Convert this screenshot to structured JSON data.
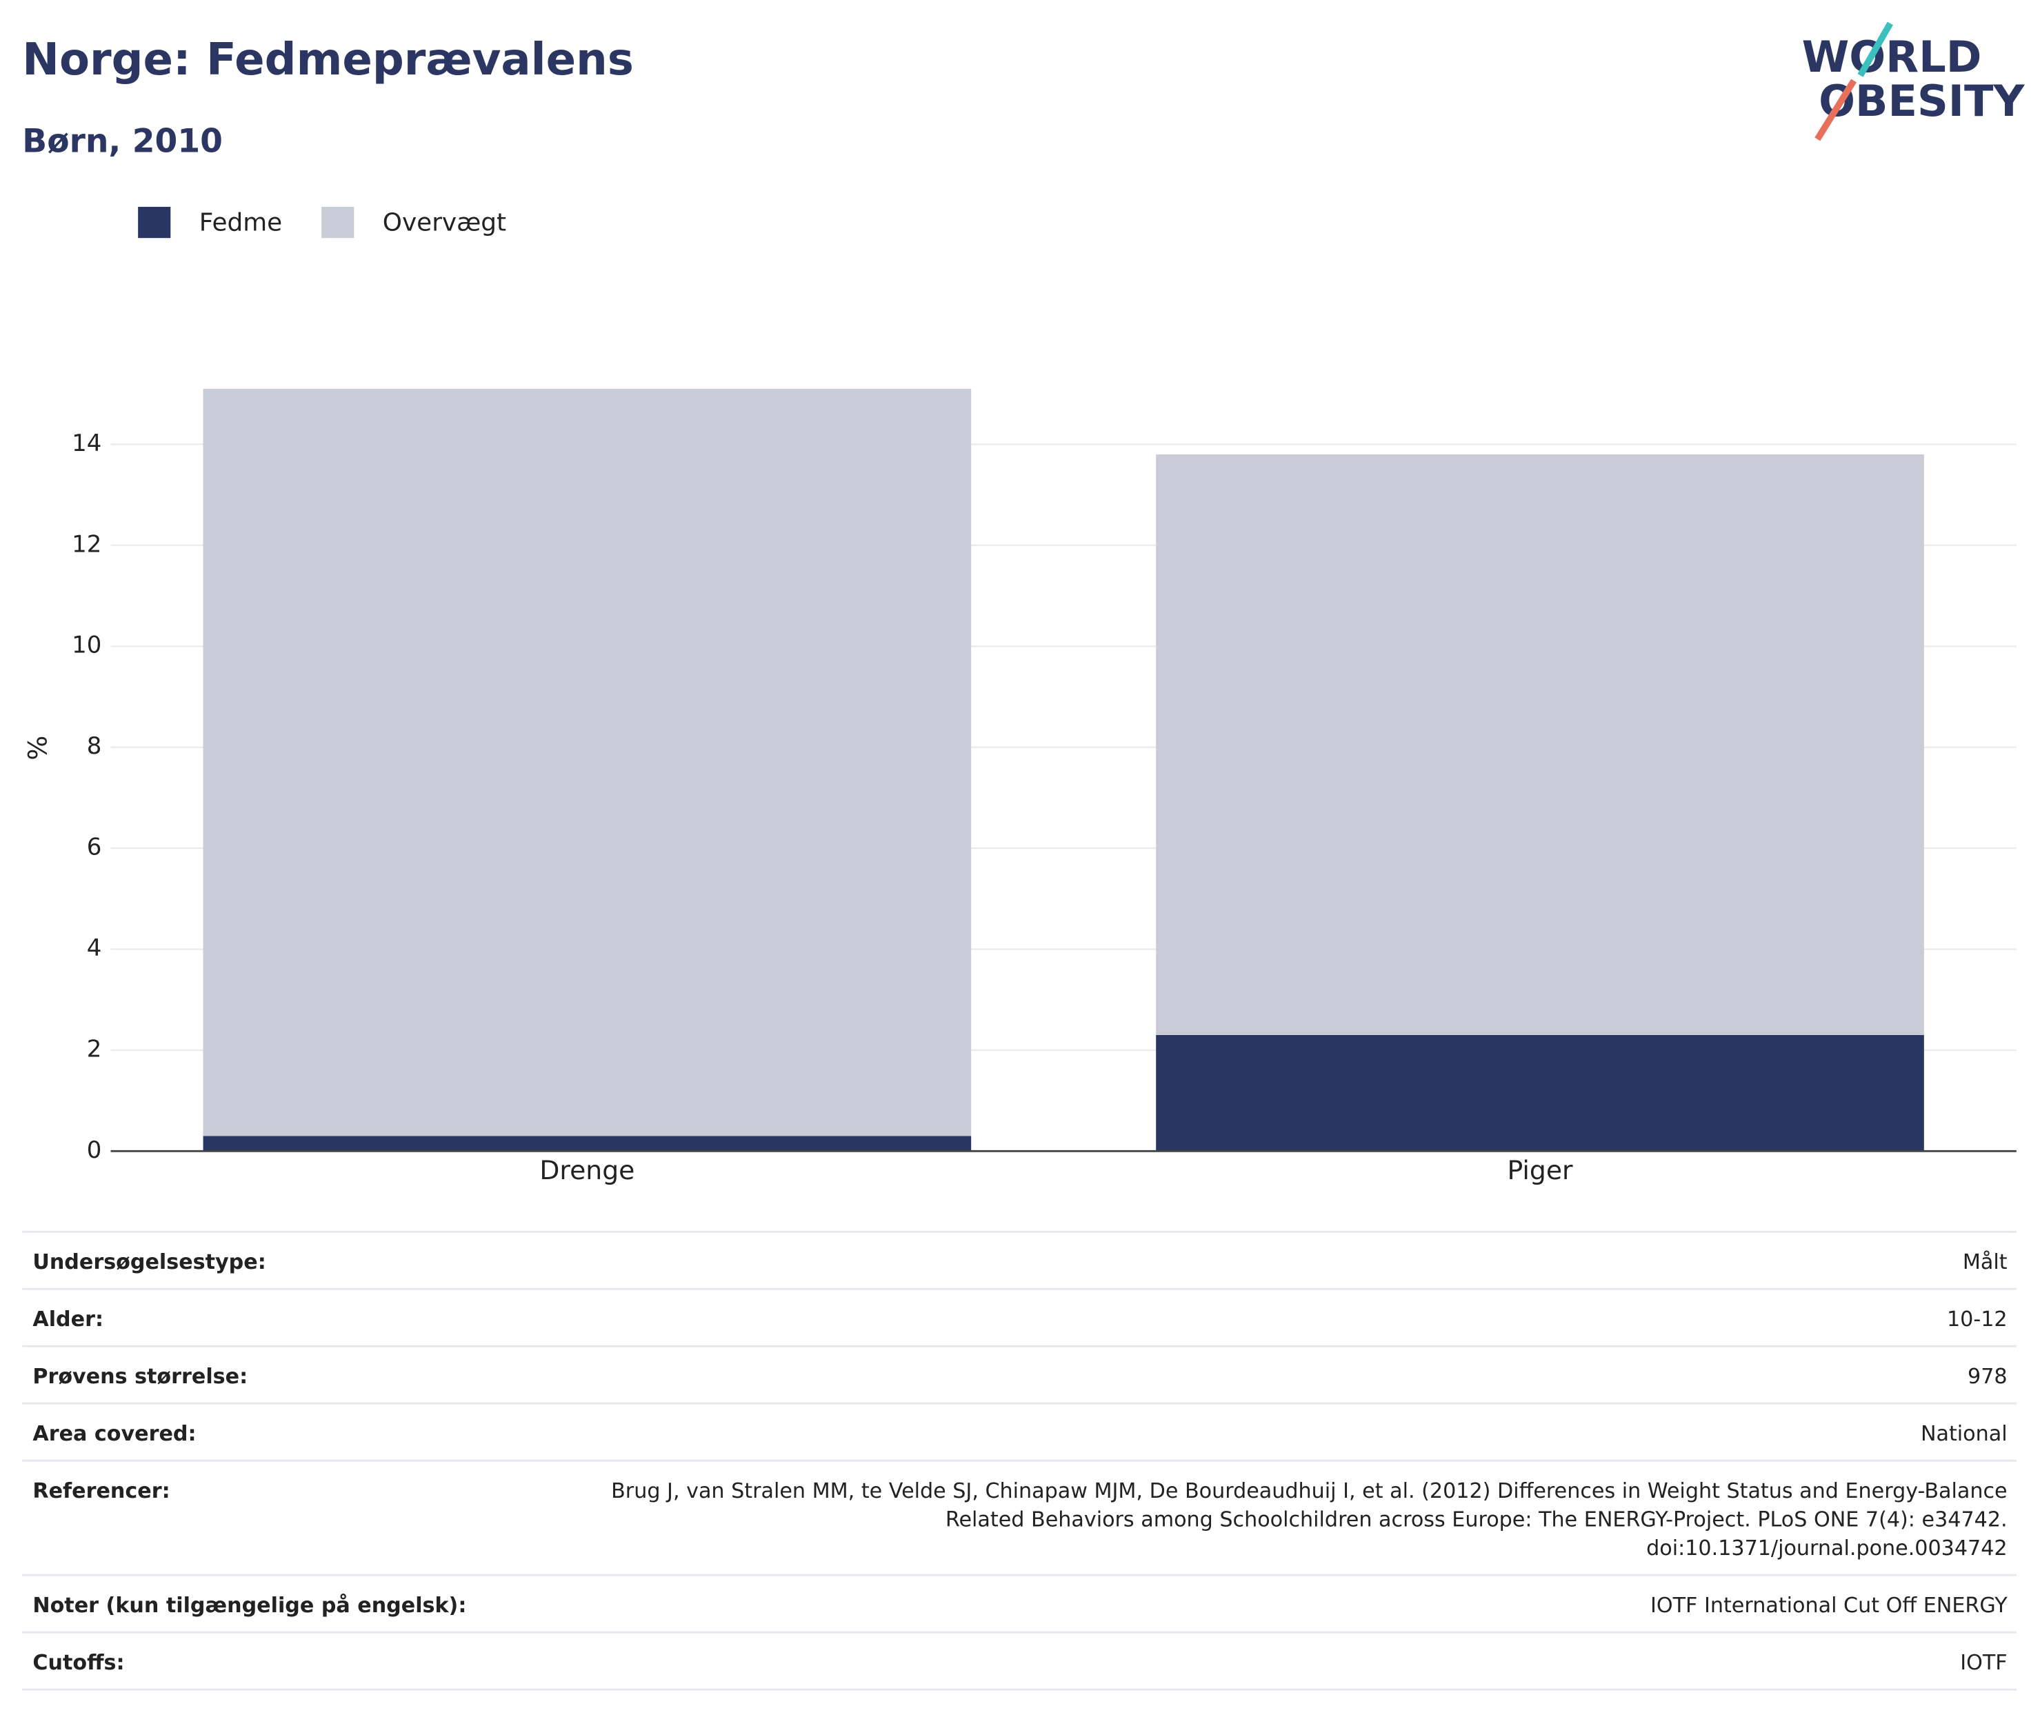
{
  "chart_data": {
    "type": "stacked_bar",
    "title": "Norge: Fedmeprævalens",
    "subtitle": "Børn, 2010",
    "y_label": "%",
    "categories": [
      "Drenge",
      "Piger"
    ],
    "series": [
      {
        "name": "Fedme",
        "color": "#293563",
        "values": [
          0.3,
          2.3
        ]
      },
      {
        "name": "Overvægt",
        "color": "#c9cbd7",
        "values": [
          14.8,
          11.5
        ]
      }
    ],
    "ylim": [
      0,
      16
    ],
    "yticks": [
      0,
      2,
      4,
      6,
      8,
      10,
      12,
      14
    ],
    "grid": true,
    "legend": "top-left"
  },
  "logo": [
    "WORLD",
    "OBESITY"
  ],
  "table": {
    "rows": [
      {
        "label": "Undersøgelsestype:",
        "value": [
          "Målt"
        ]
      },
      {
        "label": "Alder:",
        "value": [
          "10-12"
        ]
      },
      {
        "label": "Prøvens størrelse:",
        "value": [
          "978"
        ]
      },
      {
        "label": "Area covered:",
        "value": [
          "National"
        ]
      },
      {
        "label": "Referencer:",
        "value": [
          "Brug J, van Stralen MM, te Velde SJ, Chinapaw MJM, De Bourdeaudhuij I, et al. (2012) Differences in Weight Status and Energy-Balance",
          "Related Behaviors among Schoolchildren across Europe: The ENERGY-Project. PLoS ONE 7(4): e34742.",
          "doi:10.1371/journal.pone.0034742"
        ]
      },
      {
        "label": "Noter (kun tilgængelige på engelsk):",
        "value": [
          "IOTF International Cut Off ENERGY"
        ]
      },
      {
        "label": "Cutoffs:",
        "value": [
          "IOTF"
        ]
      }
    ]
  }
}
